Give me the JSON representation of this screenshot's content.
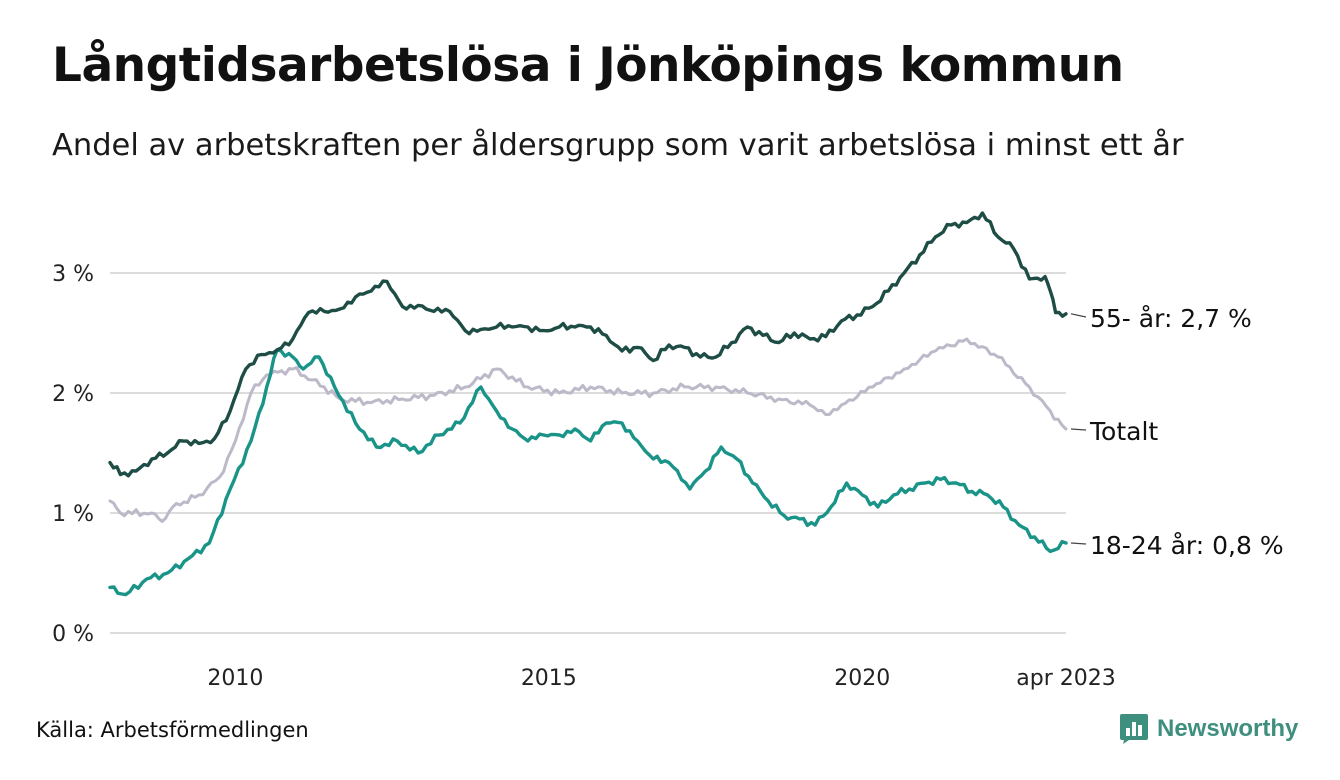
{
  "title": "Långtidsarbetslösa i Jönköpings kommun",
  "subtitle": "Andel av arbetskraften per åldersgrupp som varit arbetslösa i minst ett år",
  "source": "Källa: Arbetsförmedlingen",
  "brand": {
    "name": "Newsworthy",
    "icon": "bar-chart-speech-icon",
    "color": "#3f8f7f"
  },
  "chart_data": {
    "type": "line",
    "x_range": [
      "2008-01",
      "2023-04"
    ],
    "ylim": [
      0,
      3.6
    ],
    "y_ticks": [
      {
        "value": 0,
        "label": "0 %"
      },
      {
        "value": 1,
        "label": "1 %"
      },
      {
        "value": 2,
        "label": "2 %"
      },
      {
        "value": 3,
        "label": "3 %"
      }
    ],
    "x_ticks": [
      {
        "value": "2010-01",
        "label": "2010"
      },
      {
        "value": "2015-01",
        "label": "2015"
      },
      {
        "value": "2020-01",
        "label": "2020"
      },
      {
        "value": "2023-04",
        "label": "apr 2023"
      }
    ],
    "grid": true,
    "series": [
      {
        "name": "55- år",
        "end_label": "55- år: 2,7 %",
        "color": "#1e4d45",
        "points": [
          [
            "2008-01",
            1.42
          ],
          [
            "2008-03",
            1.32
          ],
          [
            "2008-06",
            1.35
          ],
          [
            "2008-09",
            1.45
          ],
          [
            "2008-12",
            1.5
          ],
          [
            "2009-03",
            1.6
          ],
          [
            "2009-06",
            1.58
          ],
          [
            "2009-09",
            1.62
          ],
          [
            "2009-12",
            1.85
          ],
          [
            "2010-03",
            2.2
          ],
          [
            "2010-06",
            2.32
          ],
          [
            "2010-09",
            2.36
          ],
          [
            "2010-12",
            2.45
          ],
          [
            "2011-03",
            2.67
          ],
          [
            "2011-06",
            2.68
          ],
          [
            "2011-09",
            2.7
          ],
          [
            "2011-12",
            2.8
          ],
          [
            "2012-03",
            2.85
          ],
          [
            "2012-06",
            2.93
          ],
          [
            "2012-09",
            2.72
          ],
          [
            "2012-12",
            2.73
          ],
          [
            "2013-03",
            2.68
          ],
          [
            "2013-06",
            2.68
          ],
          [
            "2013-09",
            2.52
          ],
          [
            "2013-12",
            2.53
          ],
          [
            "2014-03",
            2.55
          ],
          [
            "2014-06",
            2.55
          ],
          [
            "2014-09",
            2.55
          ],
          [
            "2014-12",
            2.52
          ],
          [
            "2015-03",
            2.55
          ],
          [
            "2015-06",
            2.55
          ],
          [
            "2015-09",
            2.55
          ],
          [
            "2015-12",
            2.48
          ],
          [
            "2016-03",
            2.35
          ],
          [
            "2016-06",
            2.38
          ],
          [
            "2016-09",
            2.27
          ],
          [
            "2016-12",
            2.4
          ],
          [
            "2017-03",
            2.38
          ],
          [
            "2017-06",
            2.3
          ],
          [
            "2017-09",
            2.3
          ],
          [
            "2017-12",
            2.42
          ],
          [
            "2018-03",
            2.55
          ],
          [
            "2018-06",
            2.48
          ],
          [
            "2018-09",
            2.42
          ],
          [
            "2018-12",
            2.5
          ],
          [
            "2019-03",
            2.45
          ],
          [
            "2019-06",
            2.47
          ],
          [
            "2019-09",
            2.6
          ],
          [
            "2019-12",
            2.65
          ],
          [
            "2020-03",
            2.72
          ],
          [
            "2020-06",
            2.85
          ],
          [
            "2020-09",
            3.0
          ],
          [
            "2020-12",
            3.15
          ],
          [
            "2021-03",
            3.3
          ],
          [
            "2021-06",
            3.4
          ],
          [
            "2021-09",
            3.42
          ],
          [
            "2021-12",
            3.5
          ],
          [
            "2022-03",
            3.3
          ],
          [
            "2022-06",
            3.2
          ],
          [
            "2022-09",
            2.95
          ],
          [
            "2022-12",
            2.97
          ],
          [
            "2023-01",
            2.85
          ],
          [
            "2023-02",
            2.67
          ],
          [
            "2023-04",
            2.66
          ]
        ]
      },
      {
        "name": "Totalt",
        "end_label": "Totalt",
        "color": "#bdb9c9",
        "points": [
          [
            "2008-01",
            1.1
          ],
          [
            "2008-03",
            1.0
          ],
          [
            "2008-09",
            1.0
          ],
          [
            "2008-11",
            0.93
          ],
          [
            "2009-01",
            1.05
          ],
          [
            "2009-06",
            1.15
          ],
          [
            "2009-10",
            1.3
          ],
          [
            "2010-01",
            1.6
          ],
          [
            "2010-04",
            2.0
          ],
          [
            "2010-07",
            2.15
          ],
          [
            "2010-12",
            2.2
          ],
          [
            "2011-06",
            2.05
          ],
          [
            "2011-09",
            1.95
          ],
          [
            "2012-03",
            1.92
          ],
          [
            "2012-09",
            1.95
          ],
          [
            "2013-03",
            1.98
          ],
          [
            "2013-09",
            2.05
          ],
          [
            "2014-03",
            2.2
          ],
          [
            "2014-09",
            2.05
          ],
          [
            "2015-03",
            2.0
          ],
          [
            "2015-09",
            2.05
          ],
          [
            "2016-03",
            2.0
          ],
          [
            "2016-09",
            2.0
          ],
          [
            "2017-03",
            2.05
          ],
          [
            "2017-09",
            2.05
          ],
          [
            "2018-03",
            2.0
          ],
          [
            "2018-09",
            1.95
          ],
          [
            "2019-03",
            1.9
          ],
          [
            "2019-06",
            1.82
          ],
          [
            "2019-09",
            1.9
          ],
          [
            "2020-03",
            2.05
          ],
          [
            "2020-09",
            2.2
          ],
          [
            "2021-03",
            2.35
          ],
          [
            "2021-09",
            2.45
          ],
          [
            "2022-03",
            2.3
          ],
          [
            "2022-09",
            2.05
          ],
          [
            "2023-01",
            1.85
          ],
          [
            "2023-04",
            1.7
          ]
        ]
      },
      {
        "name": "18-24 år",
        "end_label": "18-24 år: 0,8 %",
        "color": "#1a9488",
        "points": [
          [
            "2008-01",
            0.38
          ],
          [
            "2008-04",
            0.32
          ],
          [
            "2008-08",
            0.45
          ],
          [
            "2008-12",
            0.5
          ],
          [
            "2009-04",
            0.62
          ],
          [
            "2009-08",
            0.75
          ],
          [
            "2009-12",
            1.2
          ],
          [
            "2010-04",
            1.6
          ],
          [
            "2010-07",
            2.05
          ],
          [
            "2010-09",
            2.36
          ],
          [
            "2010-12",
            2.3
          ],
          [
            "2011-02",
            2.2
          ],
          [
            "2011-05",
            2.3
          ],
          [
            "2011-08",
            2.05
          ],
          [
            "2011-12",
            1.75
          ],
          [
            "2012-04",
            1.55
          ],
          [
            "2012-08",
            1.6
          ],
          [
            "2012-12",
            1.5
          ],
          [
            "2013-04",
            1.65
          ],
          [
            "2013-08",
            1.75
          ],
          [
            "2013-12",
            2.05
          ],
          [
            "2014-03",
            1.85
          ],
          [
            "2014-06",
            1.7
          ],
          [
            "2014-09",
            1.6
          ],
          [
            "2014-12",
            1.65
          ],
          [
            "2015-03",
            1.65
          ],
          [
            "2015-06",
            1.7
          ],
          [
            "2015-09",
            1.6
          ],
          [
            "2015-12",
            1.75
          ],
          [
            "2016-03",
            1.75
          ],
          [
            "2016-06",
            1.6
          ],
          [
            "2016-09",
            1.45
          ],
          [
            "2016-12",
            1.42
          ],
          [
            "2017-04",
            1.2
          ],
          [
            "2017-07",
            1.35
          ],
          [
            "2017-10",
            1.55
          ],
          [
            "2018-01",
            1.45
          ],
          [
            "2018-04",
            1.25
          ],
          [
            "2018-07",
            1.1
          ],
          [
            "2018-10",
            0.98
          ],
          [
            "2019-01",
            0.95
          ],
          [
            "2019-04",
            0.9
          ],
          [
            "2019-07",
            1.05
          ],
          [
            "2019-10",
            1.25
          ],
          [
            "2020-01",
            1.15
          ],
          [
            "2020-04",
            1.05
          ],
          [
            "2020-07",
            1.15
          ],
          [
            "2020-10",
            1.2
          ],
          [
            "2021-01",
            1.25
          ],
          [
            "2021-04",
            1.28
          ],
          [
            "2021-07",
            1.25
          ],
          [
            "2021-10",
            1.18
          ],
          [
            "2022-01",
            1.15
          ],
          [
            "2022-04",
            1.05
          ],
          [
            "2022-07",
            0.9
          ],
          [
            "2022-10",
            0.8
          ],
          [
            "2023-01",
            0.68
          ],
          [
            "2023-04",
            0.75
          ]
        ]
      }
    ]
  }
}
